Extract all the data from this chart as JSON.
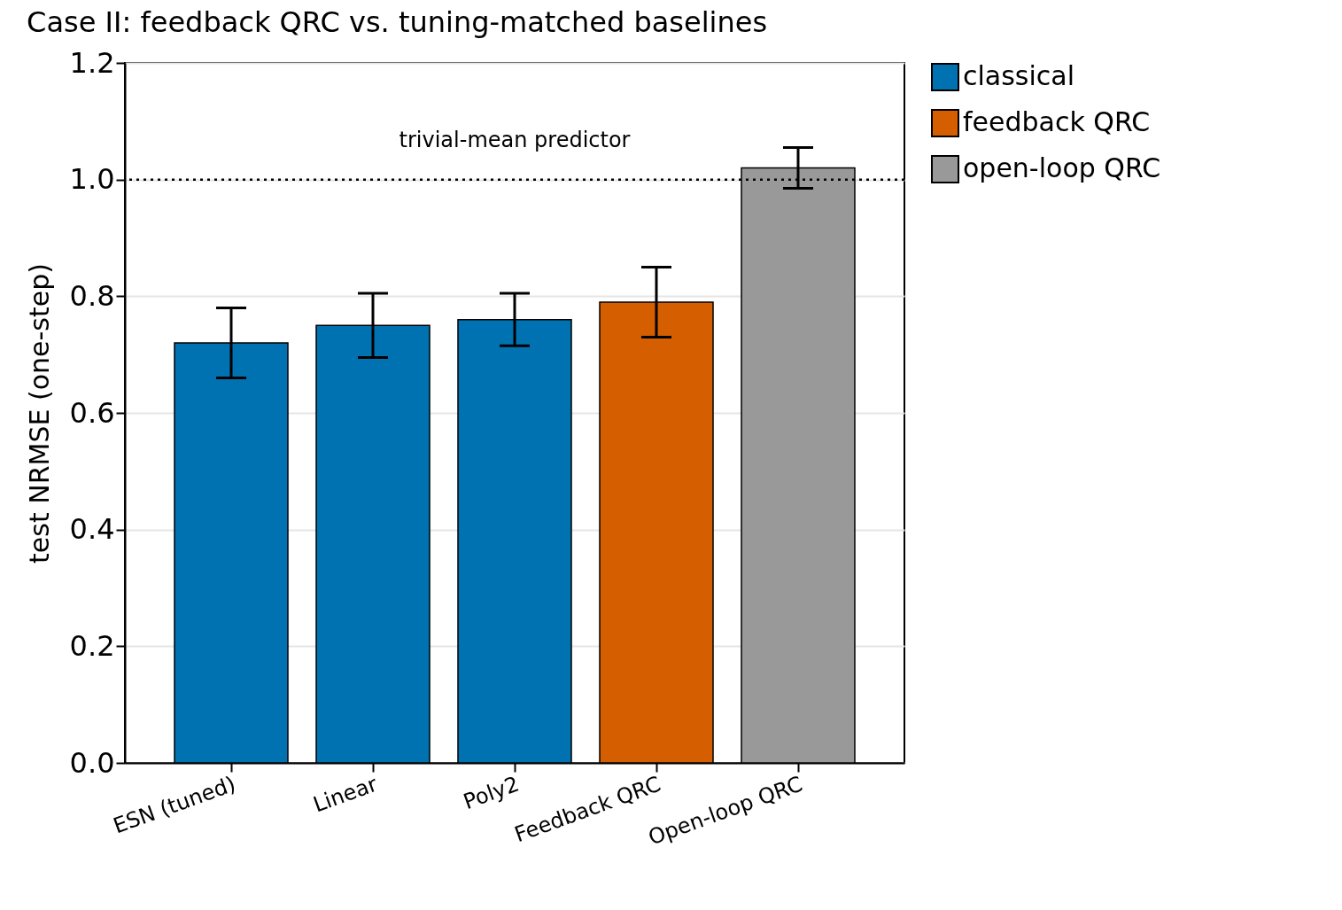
{
  "chart_data": {
    "type": "bar",
    "title": "Case II: feedback QRC vs. tuning-matched baselines",
    "ylabel": "test NRMSE (one-step)",
    "categories": [
      "ESN (tuned)",
      "Linear",
      "Poly2",
      "Feedback QRC",
      "Open-loop QRC"
    ],
    "series": [
      {
        "name": "classical",
        "color": "#0072b2",
        "values": [
          0.72,
          0.75,
          0.76,
          null,
          null
        ],
        "errors": [
          0.06,
          0.055,
          0.045,
          null,
          null
        ]
      },
      {
        "name": "feedback QRC",
        "color": "#d55e00",
        "values": [
          null,
          null,
          null,
          0.79,
          null
        ],
        "errors": [
          null,
          null,
          null,
          0.06,
          null
        ]
      },
      {
        "name": "open-loop QRC",
        "color": "#999999",
        "values": [
          null,
          null,
          null,
          null,
          1.02
        ],
        "errors": [
          null,
          null,
          null,
          null,
          0.035
        ]
      }
    ],
    "ylim": [
      0,
      1.2
    ],
    "yticks": [
      {
        "value": 0,
        "label": "0.0"
      },
      0.2,
      0.4,
      0.6,
      0.8,
      {
        "value": 1,
        "label": "1.0"
      },
      1.2
    ],
    "ref_lines": [
      {
        "axis": "y",
        "value": 1.0,
        "label": "trivial-mean predictor",
        "line_style": "dotted",
        "color": "#000000"
      }
    ],
    "grid": "y",
    "legend": "top right"
  }
}
